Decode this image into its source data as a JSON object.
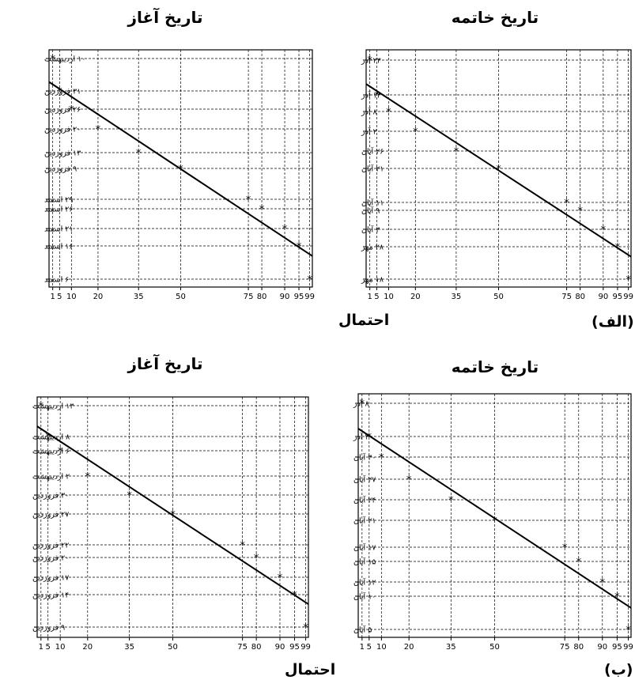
{
  "captions": {
    "prob": "احتمال",
    "a": "(الف)",
    "b": "(ب)"
  },
  "chart_data": [
    {
      "type": "scatter",
      "title": "تاریخ آغاز",
      "x_ticks": [
        1,
        5,
        10,
        20,
        35,
        50,
        75,
        80,
        90,
        95,
        99
      ],
      "y_ticks": [
        "۱۰ اردیبهشت",
        "۳۱ فروردین",
        "۲۶ فروردین",
        "۲۰ فروردین",
        "۱۳ فروردین",
        "۹ فروردین",
        "۲۹ اسفند",
        "۲۶ اسفند",
        "۲۱ اسفند",
        "۱۶ اسفند",
        "۶ اسفند"
      ],
      "points": [
        {
          "x": 1,
          "y": "۱۰ اردیبهشت"
        },
        {
          "x": 5,
          "y": "۳۱ فروردین"
        },
        {
          "x": 10,
          "y": "۲۶ فروردین"
        },
        {
          "x": 20,
          "y": "۲۰ فروردین"
        },
        {
          "x": 35,
          "y": "۱۳ فروردین"
        },
        {
          "x": 50,
          "y": "۹ فروردین"
        },
        {
          "x": 75,
          "y": "۲۹ اسفند"
        },
        {
          "x": 80,
          "y": "۲۶ اسفند"
        },
        {
          "x": 90,
          "y": "۲۱ اسفند"
        },
        {
          "x": 95,
          "y": "۱۶ اسفند"
        },
        {
          "x": 99,
          "y": "۶ اسفند"
        }
      ],
      "trend_line": true,
      "grid": true
    },
    {
      "type": "scatter",
      "title": "تاریخ خاتمه",
      "x_ticks": [
        1,
        5,
        10,
        20,
        35,
        50,
        75,
        80,
        90,
        95,
        99
      ],
      "y_ticks": [
        "۲۳ آذر",
        "۱۳ آذر",
        "۸ آذر",
        "۲ آذر",
        "۲۶ آبان",
        "۲۱ آبان",
        "۱۱ آبان",
        "۹ آبان",
        "۳ آبان",
        "۲۸ مهر",
        "۱۸ مهر"
      ],
      "points": [
        {
          "x": 1,
          "y": "۲۳ آذر"
        },
        {
          "x": 5,
          "y": "۱۳ آذر"
        },
        {
          "x": 10,
          "y": "۸ آذر"
        },
        {
          "x": 20,
          "y": "۲ آذر"
        },
        {
          "x": 35,
          "y": "۲۶ آبان"
        },
        {
          "x": 50,
          "y": "۲۱ آبان"
        },
        {
          "x": 75,
          "y": "۱۱ آبان"
        },
        {
          "x": 80,
          "y": "۹ آبان"
        },
        {
          "x": 90,
          "y": "۳ آبان"
        },
        {
          "x": 95,
          "y": "۲۸ مهر"
        },
        {
          "x": 99,
          "y": "۱۸ مهر"
        }
      ],
      "trend_line": true,
      "grid": true
    },
    {
      "type": "scatter",
      "title": "تاریخ آغاز",
      "x_ticks": [
        1,
        5,
        10,
        20,
        35,
        50,
        75,
        80,
        90,
        95,
        99
      ],
      "y_ticks": [
        "۱۳ اردیبهشت",
        "۸ اردیبهشت",
        "۶ اردیبهشت",
        "۲ اردیبهشت",
        "۳۰ فروردین",
        "۲۷ فروردین",
        "۲۲ فروردین",
        "۲۰ فروردین",
        "۱۷ فروردین",
        "۱۴ فروردین",
        "۹ فروردین"
      ],
      "points": [
        {
          "x": 1,
          "y": "۱۳ اردیبهشت"
        },
        {
          "x": 5,
          "y": "۸ اردیبهشت"
        },
        {
          "x": 10,
          "y": "۶ اردیبهشت"
        },
        {
          "x": 20,
          "y": "۲ اردیبهشت"
        },
        {
          "x": 35,
          "y": "۳۰ فروردین"
        },
        {
          "x": 50,
          "y": "۲۷ فروردین"
        },
        {
          "x": 75,
          "y": "۲۲ فروردین"
        },
        {
          "x": 80,
          "y": "۲۰ فروردین"
        },
        {
          "x": 90,
          "y": "۱۷ فروردین"
        },
        {
          "x": 95,
          "y": "۱۴ فروردین"
        },
        {
          "x": 99,
          "y": "۹ فروردین"
        }
      ],
      "trend_line": true,
      "grid": true
    },
    {
      "type": "scatter",
      "title": "تاریخ خاتمه",
      "x_ticks": [
        1,
        5,
        10,
        20,
        35,
        50,
        75,
        80,
        90,
        95,
        99
      ],
      "y_ticks": [
        "۸ آذر",
        "۳ آذر",
        "۳۰ آبان",
        "۲۷ آبان",
        "۲۴ آبان",
        "۲۱ آبان",
        "۱۷ آبان",
        "۱۵ آبان",
        "۱۲ آبان",
        "۱۰ آبان",
        "۵ آبان"
      ],
      "points": [
        {
          "x": 1,
          "y": "۸ آذر"
        },
        {
          "x": 5,
          "y": "۳ آذر"
        },
        {
          "x": 10,
          "y": "۳۰ آبان"
        },
        {
          "x": 20,
          "y": "۲۷ آبان"
        },
        {
          "x": 35,
          "y": "۲۴ آبان"
        },
        {
          "x": 50,
          "y": "۲۱ آبان"
        },
        {
          "x": 75,
          "y": "۱۷ آبان"
        },
        {
          "x": 80,
          "y": "۱۵ آبان"
        },
        {
          "x": 90,
          "y": "۱۲ آبان"
        },
        {
          "x": 95,
          "y": "۱۰ آبان"
        },
        {
          "x": 99,
          "y": "۵ آبان"
        }
      ],
      "trend_line": true,
      "grid": true
    }
  ]
}
